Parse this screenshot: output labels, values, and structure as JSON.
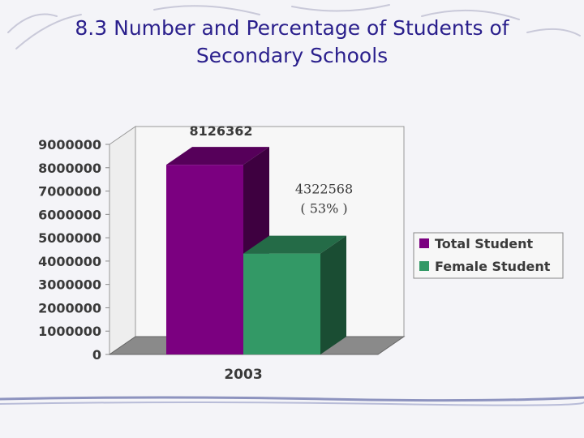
{
  "slide": {
    "title_line1": "8.3  Number and Percentage of Students of",
    "title_line2": "Secondary Schools"
  },
  "chart_data": {
    "type": "bar",
    "categories": [
      "2003"
    ],
    "series": [
      {
        "name": "Total Student",
        "values": [
          8126362
        ],
        "color": "#7b0080",
        "label": "8126362"
      },
      {
        "name": "Female Student",
        "values": [
          4322568
        ],
        "color": "#339966",
        "label": "4322568",
        "label_extra": "( 53%   )"
      }
    ],
    "ylim": [
      0,
      9000000
    ],
    "yticks": [
      "9000000",
      "8000000",
      "7000000",
      "6000000",
      "5000000",
      "4000000",
      "3000000",
      "2000000",
      "1000000",
      "0"
    ],
    "legend_position": "right",
    "grid": false,
    "three_d": true
  }
}
